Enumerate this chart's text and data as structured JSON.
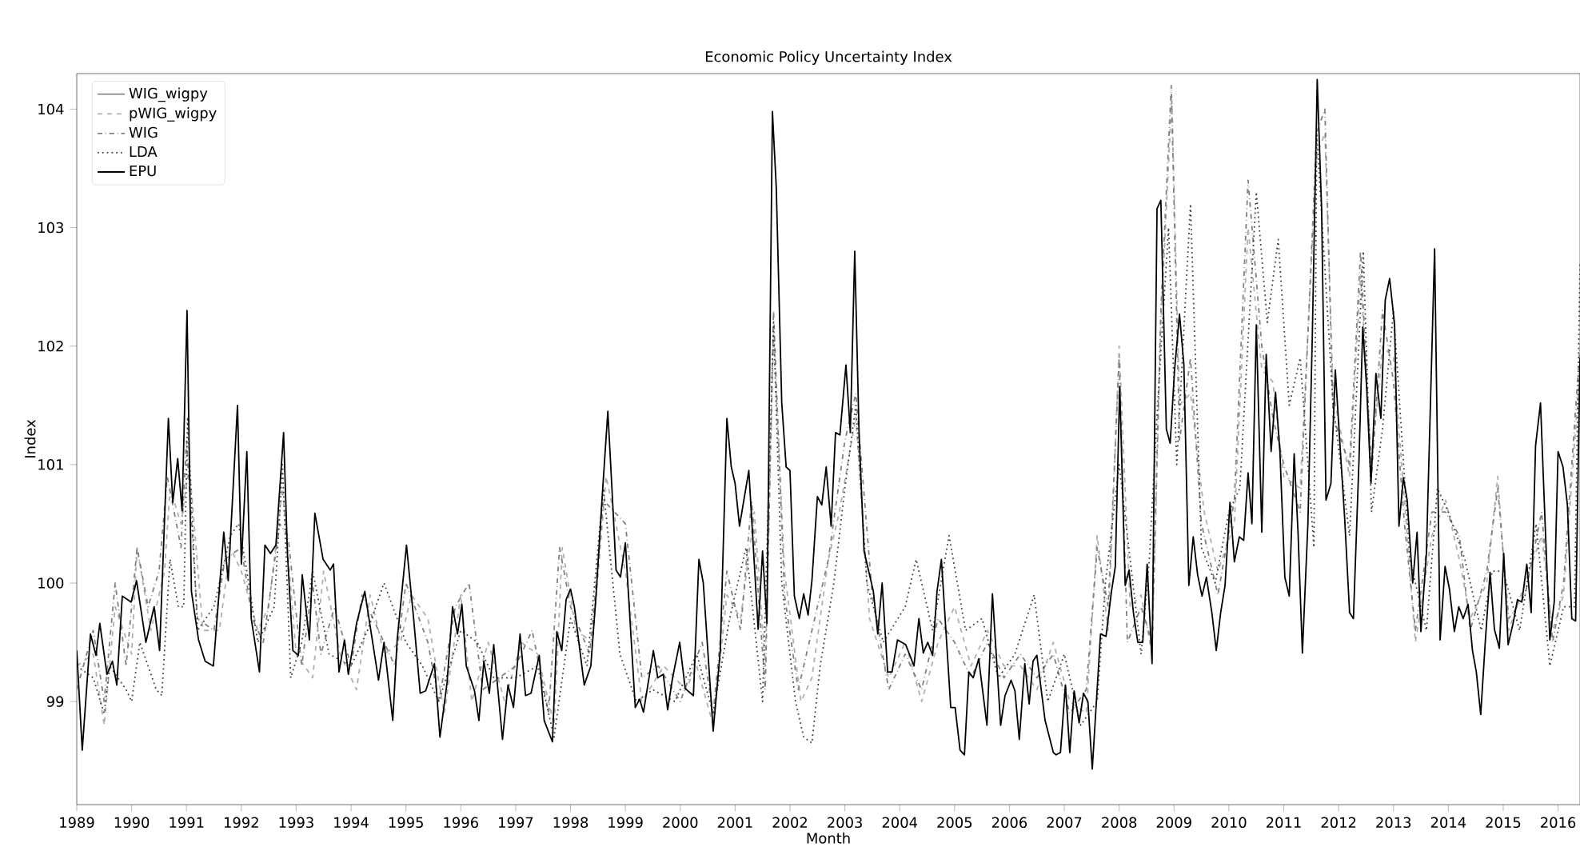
{
  "chart_data": {
    "type": "line",
    "title": "Economic Policy Uncertainty Index",
    "xlabel": "Month",
    "ylabel": "Index",
    "xlim": [
      1989,
      2016.4
    ],
    "ylim": [
      98.13,
      104.3
    ],
    "xticks": [
      1989,
      1990,
      1991,
      1992,
      1993,
      1994,
      1995,
      1996,
      1997,
      1998,
      1999,
      2000,
      2001,
      2002,
      2003,
      2004,
      2005,
      2006,
      2007,
      2008,
      2009,
      2010,
      2011,
      2012,
      2013,
      2014,
      2015,
      2016
    ],
    "yticks": [
      99,
      100,
      101,
      102,
      103,
      104
    ],
    "legend": "top left",
    "marker": "none",
    "series": [
      {
        "name": "WIG_wigpy"
      },
      {
        "name": "pWIG_wigpy",
        "color": "#b0b0b0",
        "line_style": "dashed",
        "x": [
          1989.0,
          1989.3,
          1989.5,
          1989.7,
          1990.0,
          1990.1,
          1990.35,
          1990.6,
          1990.7,
          1990.9,
          1991.05,
          1991.3,
          1991.6,
          1991.8,
          1992.0,
          1992.3,
          1992.5,
          1992.75,
          1993.0,
          1993.3,
          1993.5,
          1993.8,
          1994.1,
          1994.35,
          1994.6,
          1994.9,
          1995.1,
          1995.4,
          1995.7,
          1996.0,
          1996.2,
          1996.5,
          1996.8,
          1997.1,
          1997.4,
          1997.7,
          1997.85,
          1998.1,
          1998.4,
          1998.65,
          1999.0,
          1999.3,
          1999.7,
          2000.1,
          2000.3,
          2000.6,
          2000.85,
          2001.1,
          2001.35,
          2001.55,
          2001.7,
          2001.9,
          2002.2,
          2002.4,
          2002.7,
          2002.9,
          2003.2,
          2003.45,
          2003.8,
          2004.1,
          2004.4,
          2004.7,
          2005.0,
          2005.3,
          2005.6,
          2005.9,
          2006.2,
          2006.5,
          2006.8,
          2007.1,
          2007.4,
          2007.6,
          2007.8,
          2008.0,
          2008.2,
          2008.4,
          2008.6,
          2008.76,
          2008.96,
          2009.1,
          2009.3,
          2009.55,
          2009.8,
          2010.1,
          2010.35,
          2010.6,
          2010.8,
          2011.0,
          2011.3,
          2011.6,
          2011.75,
          2011.9,
          2012.2,
          2012.4,
          2012.6,
          2012.8,
          2013.0,
          2013.2,
          2013.4,
          2013.7,
          2013.95,
          2014.2,
          2014.4,
          2014.7,
          2014.9,
          2015.1,
          2015.4,
          2015.7,
          2015.9,
          2016.1,
          2016.4
        ],
        "values": [
          99.3,
          99.4,
          98.8,
          99.8,
          99.4,
          100.3,
          99.6,
          100.1,
          100.8,
          100.5,
          101.0,
          99.6,
          99.6,
          100.3,
          100.1,
          99.6,
          99.8,
          100.8,
          99.4,
          99.2,
          100.1,
          99.4,
          99.1,
          99.9,
          99.4,
          99.5,
          99.9,
          99.7,
          98.9,
          99.9,
          99.0,
          99.5,
          99.0,
          99.5,
          99.4,
          98.8,
          100.3,
          99.6,
          99.5,
          100.9,
          100.1,
          99.0,
          99.3,
          99.1,
          99.3,
          98.8,
          99.9,
          99.7,
          100.6,
          99.3,
          102.1,
          100.1,
          99.0,
          99.2,
          100.2,
          100.6,
          101.4,
          99.7,
          99.2,
          99.5,
          99.0,
          99.5,
          99.8,
          99.3,
          99.6,
          99.3,
          99.3,
          99.1,
          99.5,
          99.0,
          98.9,
          100.4,
          99.6,
          102.0,
          99.8,
          99.9,
          99.4,
          102.2,
          104.1,
          101.5,
          101.6,
          100.6,
          100.1,
          100.5,
          103.0,
          101.8,
          101.7,
          100.9,
          100.8,
          103.6,
          103.8,
          101.6,
          100.9,
          102.6,
          101.0,
          102.0,
          101.9,
          100.7,
          99.5,
          100.4,
          100.7,
          100.2,
          99.7,
          100.0,
          100.9,
          99.6,
          100.0,
          100.4,
          99.6,
          99.9,
          101.8
        ]
      },
      {
        "name": "WIG",
        "color": "#808080",
        "line_style": "dashdot",
        "x": [
          1989.0,
          1989.3,
          1989.5,
          1989.7,
          1989.9,
          1990.1,
          1990.3,
          1990.5,
          1990.65,
          1990.9,
          1991.0,
          1991.2,
          1991.5,
          1991.7,
          1992.0,
          1992.2,
          1992.4,
          1992.7,
          1992.85,
          1993.1,
          1993.3,
          1993.45,
          1993.7,
          1994.0,
          1994.2,
          1994.5,
          1994.8,
          1995.0,
          1995.4,
          1995.6,
          1995.9,
          1996.15,
          1996.4,
          1996.7,
          1997.0,
          1997.3,
          1997.6,
          1997.8,
          1998.0,
          1998.35,
          1998.6,
          1999.0,
          1999.3,
          1999.6,
          2000.0,
          2000.4,
          2000.6,
          2000.85,
          2001.1,
          2001.3,
          2001.55,
          2001.7,
          2001.9,
          2002.15,
          2002.4,
          2002.7,
          2003.0,
          2003.2,
          2003.5,
          2003.8,
          2004.1,
          2004.4,
          2004.7,
          2005.0,
          2005.3,
          2005.6,
          2005.9,
          2006.2,
          2006.5,
          2006.8,
          2007.1,
          2007.4,
          2007.6,
          2007.8,
          2008.0,
          2008.15,
          2008.4,
          2008.6,
          2008.76,
          2008.95,
          2009.1,
          2009.3,
          2009.5,
          2009.8,
          2010.1,
          2010.35,
          2010.6,
          2010.8,
          2011.0,
          2011.3,
          2011.6,
          2011.75,
          2011.9,
          2012.2,
          2012.4,
          2012.6,
          2012.8,
          2013.0,
          2013.2,
          2013.4,
          2013.7,
          2013.95,
          2014.2,
          2014.4,
          2014.7,
          2014.9,
          2015.1,
          2015.4,
          2015.7,
          2015.9,
          2016.1,
          2016.4
        ],
        "values": [
          99.1,
          99.6,
          99.0,
          100.0,
          99.3,
          100.3,
          99.8,
          100.1,
          100.9,
          100.3,
          101.2,
          99.7,
          99.6,
          100.2,
          100.3,
          99.7,
          99.5,
          100.5,
          100.4,
          99.3,
          100.0,
          99.4,
          99.8,
          99.3,
          99.9,
          99.6,
          99.3,
          100.0,
          99.5,
          99.0,
          99.8,
          100.0,
          99.1,
          99.2,
          99.3,
          99.6,
          98.9,
          100.3,
          99.8,
          99.4,
          100.7,
          100.5,
          99.2,
          99.3,
          99.0,
          99.5,
          98.9,
          100.1,
          99.6,
          100.7,
          99.1,
          102.3,
          99.9,
          99.1,
          99.6,
          100.2,
          101.2,
          101.6,
          99.9,
          99.1,
          99.4,
          99.1,
          99.7,
          99.5,
          99.2,
          99.5,
          99.2,
          99.4,
          99.2,
          99.4,
          98.9,
          99.1,
          100.3,
          99.8,
          101.9,
          99.5,
          99.8,
          99.5,
          102.3,
          104.2,
          101.2,
          101.9,
          100.5,
          99.9,
          100.7,
          103.4,
          102.0,
          101.4,
          101.0,
          100.6,
          103.8,
          104.0,
          101.4,
          101.0,
          102.8,
          100.9,
          102.3,
          101.7,
          100.5,
          99.6,
          100.6,
          100.6,
          100.4,
          99.6,
          100.1,
          100.8,
          99.7,
          99.9,
          100.6,
          99.5,
          100.0,
          102.0
        ]
      },
      {
        "name": "LDA",
        "color": "#404040",
        "line_style": "dotted",
        "x": [
          1989.0,
          1989.3,
          1989.5,
          1989.6,
          1989.9,
          1990.0,
          1990.15,
          1990.3,
          1990.45,
          1990.55,
          1990.7,
          1990.85,
          1990.95,
          1991.02,
          1991.2,
          1991.5,
          1991.8,
          1991.95,
          1992.1,
          1992.3,
          1992.6,
          1992.75,
          1992.9,
          1993.1,
          1993.3,
          1993.6,
          1994.0,
          1994.3,
          1994.6,
          1995.0,
          1995.3,
          1995.6,
          1996.0,
          1996.3,
          1996.6,
          1997.0,
          1997.4,
          1997.7,
          1998.0,
          1998.3,
          1998.6,
          1998.9,
          1999.2,
          1999.5,
          1999.9,
          2000.3,
          2000.6,
          2000.9,
          2001.2,
          2001.5,
          2001.7,
          2001.85,
          2002.1,
          2002.25,
          2002.4,
          2002.55,
          2002.8,
          2003.0,
          2003.2,
          2003.4,
          2003.7,
          2004.1,
          2004.3,
          2004.6,
          2004.9,
          2005.2,
          2005.5,
          2005.8,
          2006.1,
          2006.45,
          2006.7,
          2007.0,
          2007.3,
          2007.6,
          2007.75,
          2008.0,
          2008.2,
          2008.4,
          2008.55,
          2008.7,
          2008.9,
          2009.05,
          2009.3,
          2009.5,
          2009.75,
          2010.0,
          2010.2,
          2010.5,
          2010.7,
          2010.9,
          2011.1,
          2011.3,
          2011.55,
          2011.6,
          2011.9,
          2012.2,
          2012.45,
          2012.6,
          2012.8,
          2013.0,
          2013.3,
          2013.6,
          2013.8,
          2014.0,
          2014.3,
          2014.6,
          2014.8,
          2015.0,
          2015.3,
          2015.6,
          2015.85,
          2016.1,
          2016.3,
          2016.4
        ],
        "values": [
          99.3,
          99.2,
          98.9,
          99.3,
          99.1,
          99.0,
          99.5,
          99.3,
          99.1,
          99.05,
          100.2,
          99.8,
          99.8,
          101.4,
          99.6,
          99.8,
          100.4,
          100.5,
          100.1,
          99.5,
          99.8,
          101.0,
          99.2,
          99.5,
          100.1,
          99.4,
          99.3,
          99.6,
          100.0,
          99.5,
          99.3,
          99.0,
          99.6,
          99.5,
          99.2,
          99.2,
          99.3,
          98.7,
          99.7,
          99.3,
          100.8,
          99.4,
          99.0,
          99.1,
          99.0,
          99.4,
          98.9,
          99.7,
          100.3,
          99.0,
          102.2,
          100.0,
          99.0,
          98.7,
          98.65,
          99.3,
          100.0,
          100.8,
          101.5,
          100.0,
          99.5,
          99.8,
          100.2,
          99.6,
          100.4,
          99.6,
          99.7,
          99.2,
          99.4,
          99.9,
          99.0,
          99.4,
          98.8,
          99.0,
          100.0,
          101.0,
          100.2,
          99.4,
          100.2,
          101.5,
          103.0,
          101.0,
          103.2,
          100.3,
          100.0,
          100.6,
          100.8,
          103.3,
          102.2,
          102.9,
          101.5,
          101.9,
          100.3,
          103.8,
          101.5,
          100.4,
          102.8,
          100.6,
          101.3,
          102.3,
          100.2,
          99.6,
          100.8,
          100.6,
          100.2,
          99.6,
          100.1,
          100.1,
          99.6,
          100.5,
          99.3,
          99.8,
          99.8,
          102.7
        ]
      },
      {
        "name": "EPU",
        "color": "#000000",
        "line_style": "solid",
        "x": [
          1989.0,
          1989.1,
          1989.25,
          1989.35,
          1989.42,
          1989.55,
          1989.65,
          1989.73,
          1989.83,
          1989.99,
          1990.09,
          1990.26,
          1990.41,
          1990.51,
          1990.67,
          1990.75,
          1990.84,
          1990.92,
          1991.01,
          1991.09,
          1991.22,
          1991.34,
          1991.49,
          1991.68,
          1991.76,
          1991.93,
          1992.0,
          1992.1,
          1992.18,
          1992.33,
          1992.43,
          1992.53,
          1992.63,
          1992.77,
          1992.84,
          1992.94,
          1993.04,
          1993.11,
          1993.24,
          1993.34,
          1993.49,
          1993.62,
          1993.68,
          1993.78,
          1993.88,
          1993.95,
          1994.1,
          1994.25,
          1994.37,
          1994.5,
          1994.6,
          1994.76,
          1994.84,
          1995.01,
          1995.14,
          1995.26,
          1995.36,
          1995.52,
          1995.62,
          1995.75,
          1995.85,
          1995.94,
          1996.02,
          1996.1,
          1996.25,
          1996.33,
          1996.42,
          1996.52,
          1996.6,
          1996.76,
          1996.86,
          1996.96,
          1997.08,
          1997.18,
          1997.28,
          1997.43,
          1997.52,
          1997.67,
          1997.75,
          1997.84,
          1997.92,
          1998.0,
          1998.07,
          1998.25,
          1998.37,
          1998.47,
          1998.58,
          1998.68,
          1998.75,
          1998.83,
          1998.91,
          1999.0,
          1999.18,
          1999.26,
          1999.33,
          1999.51,
          1999.59,
          1999.69,
          1999.77,
          1999.86,
          1999.99,
          2000.09,
          2000.24,
          2000.34,
          2000.42,
          2000.6,
          2000.73,
          2000.85,
          2000.93,
          2001.0,
          2001.08,
          2001.25,
          2001.42,
          2001.5,
          2001.58,
          2001.68,
          2001.75,
          2001.85,
          2001.93,
          2002.0,
          2002.08,
          2002.17,
          2002.25,
          2002.33,
          2002.4,
          2002.5,
          2002.58,
          2002.66,
          2002.75,
          2002.83,
          2002.91,
          2003.02,
          2003.1,
          2003.18,
          2003.26,
          2003.35,
          2003.52,
          2003.6,
          2003.68,
          2003.78,
          2003.86,
          2003.96,
          2004.11,
          2004.26,
          2004.35,
          2004.43,
          2004.51,
          2004.6,
          2004.68,
          2004.76,
          2004.88,
          2004.93,
          2005.01,
          2005.1,
          2005.18,
          2005.26,
          2005.34,
          2005.44,
          2005.59,
          2005.69,
          2005.84,
          2005.92,
          2006.03,
          2006.1,
          2006.18,
          2006.28,
          2006.36,
          2006.43,
          2006.5,
          2006.65,
          2006.8,
          2006.85,
          2006.93,
          2007.02,
          2007.1,
          2007.18,
          2007.27,
          2007.35,
          2007.43,
          2007.51,
          2007.66,
          2007.76,
          2007.86,
          2007.93,
          2008.01,
          2008.11,
          2008.18,
          2008.26,
          2008.34,
          2008.43,
          2008.51,
          2008.6,
          2008.69,
          2008.76,
          2008.86,
          2008.93,
          2009.01,
          2009.1,
          2009.18,
          2009.27,
          2009.35,
          2009.43,
          2009.51,
          2009.59,
          2009.69,
          2009.77,
          2009.85,
          2009.93,
          2010.02,
          2010.1,
          2010.19,
          2010.27,
          2010.35,
          2010.42,
          2010.5,
          2010.6,
          2010.68,
          2010.77,
          2010.85,
          2010.93,
          2011.02,
          2011.1,
          2011.19,
          2011.26,
          2011.34,
          2011.44,
          2011.52,
          2011.61,
          2011.69,
          2011.77,
          2011.86,
          2011.94,
          2012.02,
          2012.11,
          2012.2,
          2012.27,
          2012.37,
          2012.44,
          2012.51,
          2012.59,
          2012.68,
          2012.77,
          2012.85,
          2012.93,
          2013.02,
          2013.1,
          2013.18,
          2013.25,
          2013.35,
          2013.43,
          2013.5,
          2013.6,
          2013.75,
          2013.85,
          2013.94,
          2014.02,
          2014.11,
          2014.19,
          2014.27,
          2014.36,
          2014.44,
          2014.51,
          2014.59,
          2014.67,
          2014.76,
          2014.84,
          2014.93,
          2015.01,
          2015.09,
          2015.18,
          2015.26,
          2015.34,
          2015.43,
          2015.51,
          2015.59,
          2015.68,
          2015.77,
          2015.85,
          2015.93,
          2016.0,
          2016.09,
          2016.17,
          2016.25,
          2016.32,
          2016.4
        ],
        "values": [
          99.43,
          98.59,
          99.57,
          99.39,
          99.66,
          99.23,
          99.34,
          99.14,
          99.89,
          99.84,
          100.02,
          99.5,
          99.8,
          99.43,
          101.39,
          100.68,
          101.05,
          100.61,
          102.3,
          99.93,
          99.52,
          99.34,
          99.3,
          100.43,
          100.02,
          101.5,
          100.16,
          101.11,
          99.7,
          99.25,
          100.32,
          100.25,
          100.32,
          101.27,
          100.25,
          99.43,
          99.39,
          100.07,
          99.52,
          100.59,
          100.2,
          100.11,
          100.16,
          99.25,
          99.52,
          99.23,
          99.66,
          99.93,
          99.57,
          99.18,
          99.5,
          98.84,
          99.52,
          100.32,
          99.7,
          99.07,
          99.09,
          99.32,
          98.7,
          99.16,
          99.8,
          99.57,
          99.82,
          99.3,
          99.09,
          98.84,
          99.34,
          99.07,
          99.48,
          98.68,
          99.14,
          98.95,
          99.57,
          99.05,
          99.07,
          99.39,
          98.84,
          98.66,
          99.59,
          99.43,
          99.86,
          99.95,
          99.8,
          99.14,
          99.3,
          99.93,
          100.75,
          101.45,
          100.84,
          100.11,
          100.05,
          100.34,
          98.95,
          99.02,
          98.91,
          99.43,
          99.2,
          99.23,
          98.93,
          99.2,
          99.5,
          99.11,
          99.05,
          100.2,
          100.0,
          98.75,
          99.43,
          101.39,
          100.98,
          100.84,
          100.48,
          100.95,
          99.61,
          100.27,
          99.66,
          103.98,
          103.34,
          101.52,
          100.98,
          100.95,
          99.89,
          99.7,
          99.91,
          99.73,
          100.02,
          100.73,
          100.66,
          100.98,
          100.48,
          101.27,
          101.25,
          101.84,
          101.27,
          102.8,
          101.25,
          100.27,
          99.93,
          99.57,
          100.0,
          99.25,
          99.25,
          99.52,
          99.48,
          99.3,
          99.7,
          99.41,
          99.5,
          99.39,
          99.93,
          100.2,
          99.32,
          98.95,
          98.95,
          98.59,
          98.55,
          99.25,
          99.2,
          99.36,
          98.8,
          99.91,
          98.8,
          99.05,
          99.18,
          99.09,
          98.68,
          99.32,
          98.98,
          99.34,
          99.39,
          98.84,
          98.57,
          98.55,
          98.57,
          99.14,
          98.57,
          99.09,
          98.82,
          99.07,
          99.0,
          98.43,
          99.57,
          99.55,
          99.93,
          100.14,
          101.66,
          99.98,
          100.11,
          99.75,
          99.5,
          99.5,
          100.16,
          99.32,
          103.16,
          103.23,
          101.3,
          101.18,
          101.8,
          102.27,
          101.84,
          99.98,
          100.39,
          100.07,
          99.89,
          100.05,
          99.75,
          99.43,
          99.75,
          99.98,
          100.68,
          100.18,
          100.39,
          100.36,
          100.93,
          100.5,
          102.18,
          100.43,
          101.93,
          101.11,
          101.61,
          101.11,
          100.05,
          99.89,
          101.09,
          100.43,
          99.41,
          100.5,
          102.07,
          104.25,
          103.16,
          100.7,
          100.84,
          101.8,
          101.2,
          100.55,
          99.75,
          99.7,
          101.02,
          102.16,
          101.66,
          100.84,
          101.77,
          101.39,
          102.39,
          102.57,
          102.18,
          100.48,
          100.89,
          100.7,
          100.0,
          100.43,
          99.59,
          100.25,
          102.82,
          99.52,
          100.14,
          99.95,
          99.59,
          99.8,
          99.7,
          99.82,
          99.43,
          99.25,
          98.89,
          99.48,
          100.09,
          99.61,
          99.45,
          100.25,
          99.48,
          99.66,
          99.86,
          99.84,
          100.16,
          99.75,
          101.16,
          101.52,
          100.43,
          99.52,
          99.84,
          101.11,
          100.98,
          100.66,
          99.7,
          99.68,
          101.9
        ]
      }
    ]
  }
}
